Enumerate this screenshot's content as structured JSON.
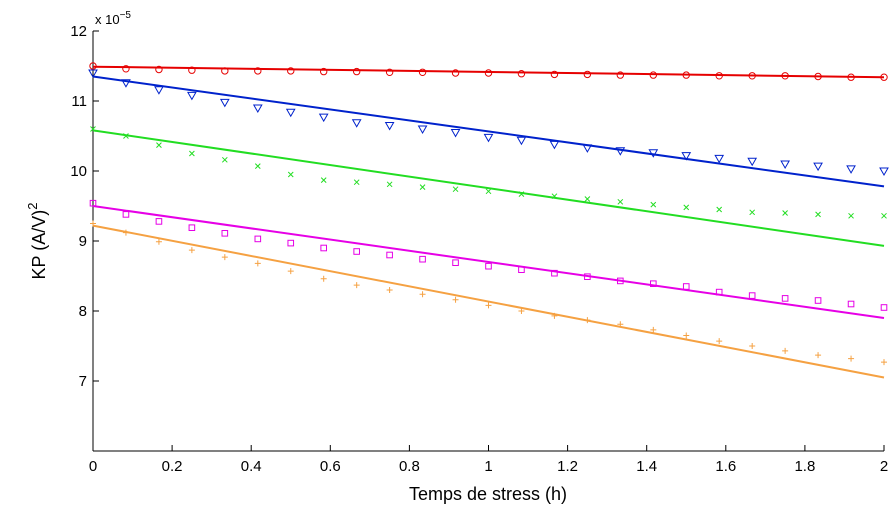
{
  "chart_data": {
    "type": "scatter",
    "title": "",
    "xlabel": "Temps de stress (h)",
    "ylabel": "KP (A/V)",
    "ylabel_superscript": "2",
    "y_multiplier_label": "x 10",
    "y_multiplier_exponent": "−5",
    "xlim": [
      0,
      2
    ],
    "ylim": [
      6,
      12
    ],
    "x_ticks": [
      0,
      0.2,
      0.4,
      0.6,
      0.8,
      1,
      1.2,
      1.4,
      1.6,
      1.8,
      2
    ],
    "x_tick_labels": [
      "0",
      "0.2",
      "0.4",
      "0.6",
      "0.8",
      "1",
      "1.2",
      "1.4",
      "1.6",
      "1.8",
      "2"
    ],
    "y_ticks": [
      7,
      8,
      9,
      10,
      11,
      12
    ],
    "y_tick_labels": [
      "7",
      "8",
      "9",
      "10",
      "11",
      "12"
    ],
    "grid": false,
    "legend": "none",
    "x": [
      0,
      0.0833,
      0.1667,
      0.25,
      0.3333,
      0.4167,
      0.5,
      0.5833,
      0.6667,
      0.75,
      0.8333,
      0.9167,
      1.0,
      1.0833,
      1.1667,
      1.25,
      1.3333,
      1.4167,
      1.5,
      1.5833,
      1.6667,
      1.75,
      1.8333,
      1.9167,
      2.0
    ],
    "series": [
      {
        "color": "#e60000",
        "marker": "circle",
        "points": [
          11.5,
          11.46,
          11.45,
          11.44,
          11.43,
          11.43,
          11.43,
          11.42,
          11.42,
          11.41,
          11.41,
          11.4,
          11.4,
          11.39,
          11.38,
          11.38,
          11.37,
          11.37,
          11.37,
          11.36,
          11.36,
          11.36,
          11.35,
          11.34,
          11.34
        ],
        "fit": [
          11.49,
          11.34
        ]
      },
      {
        "color": "#0022cc",
        "marker": "triangle-down",
        "points": [
          11.4,
          11.26,
          11.16,
          11.08,
          10.98,
          10.9,
          10.84,
          10.77,
          10.69,
          10.65,
          10.6,
          10.55,
          10.48,
          10.44,
          10.38,
          10.33,
          10.29,
          10.26,
          10.22,
          10.18,
          10.14,
          10.1,
          10.07,
          10.03,
          10.0
        ],
        "fit": [
          11.35,
          9.78
        ]
      },
      {
        "color": "#22dd22",
        "marker": "x",
        "points": [
          10.6,
          10.5,
          10.37,
          10.25,
          10.16,
          10.07,
          9.95,
          9.87,
          9.84,
          9.81,
          9.77,
          9.74,
          9.71,
          9.67,
          9.64,
          9.6,
          9.56,
          9.52,
          9.48,
          9.45,
          9.41,
          9.4,
          9.38,
          9.36,
          9.36
        ],
        "fit": [
          10.58,
          8.93
        ]
      },
      {
        "color": "#e600e6",
        "marker": "square",
        "points": [
          9.54,
          9.38,
          9.28,
          9.19,
          9.11,
          9.03,
          8.97,
          8.9,
          8.85,
          8.8,
          8.74,
          8.69,
          8.64,
          8.59,
          8.54,
          8.49,
          8.43,
          8.39,
          8.35,
          8.27,
          8.22,
          8.18,
          8.15,
          8.1,
          8.05
        ],
        "fit": [
          9.5,
          7.9
        ]
      },
      {
        "color": "#f5a142",
        "marker": "plus",
        "points": [
          9.25,
          9.12,
          8.99,
          8.87,
          8.77,
          8.68,
          8.57,
          8.46,
          8.37,
          8.3,
          8.24,
          8.16,
          8.08,
          8.0,
          7.93,
          7.87,
          7.81,
          7.73,
          7.65,
          7.57,
          7.5,
          7.43,
          7.37,
          7.32,
          7.27
        ],
        "fit": [
          9.22,
          7.05
        ]
      }
    ]
  }
}
